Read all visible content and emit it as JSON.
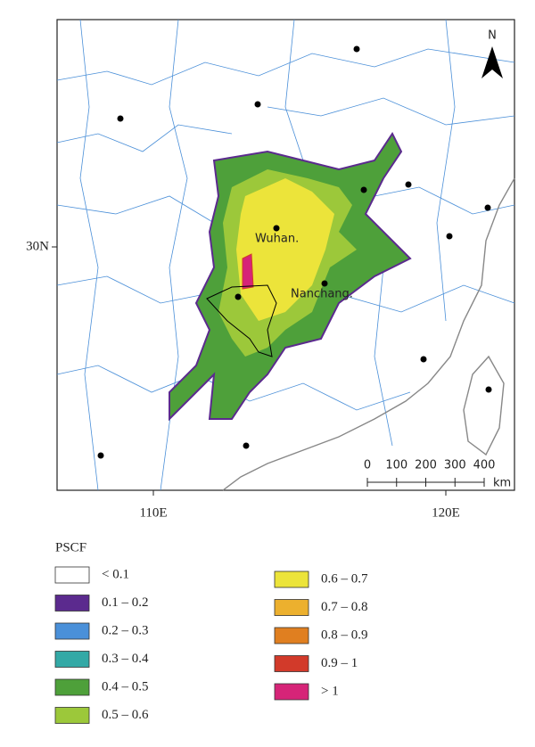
{
  "map": {
    "lat_labels": [
      "30N"
    ],
    "lon_labels": [
      "110E",
      "120E"
    ],
    "north": "N",
    "cities": [
      {
        "label": "Wuhan."
      },
      {
        "label": "Nanchang."
      }
    ],
    "scale_bar": {
      "ticks": [
        0,
        100,
        200,
        300,
        400
      ],
      "unit": "km"
    }
  },
  "legend": {
    "title": "PSCF",
    "items": [
      {
        "label": "< 0.1",
        "color": "#ffffff"
      },
      {
        "label": "0.1 – 0.2",
        "color": "#5b2a8e"
      },
      {
        "label": "0.2 – 0.3",
        "color": "#4a90d9"
      },
      {
        "label": "0.3 – 0.4",
        "color": "#33a9a6"
      },
      {
        "label": "0.4 – 0.5",
        "color": "#4ea03a"
      },
      {
        "label": "0.5 – 0.6",
        "color": "#9cc83a"
      },
      {
        "label": "0.6 – 0.7",
        "color": "#ece43a"
      },
      {
        "label": "0.7 – 0.8",
        "color": "#ecb02e"
      },
      {
        "label": "0.8 – 0.9",
        "color": "#e07f20"
      },
      {
        "label": "0.9 – 1",
        "color": "#d23a2a"
      },
      {
        "label": "> 1",
        "color": "#d62478"
      }
    ]
  }
}
